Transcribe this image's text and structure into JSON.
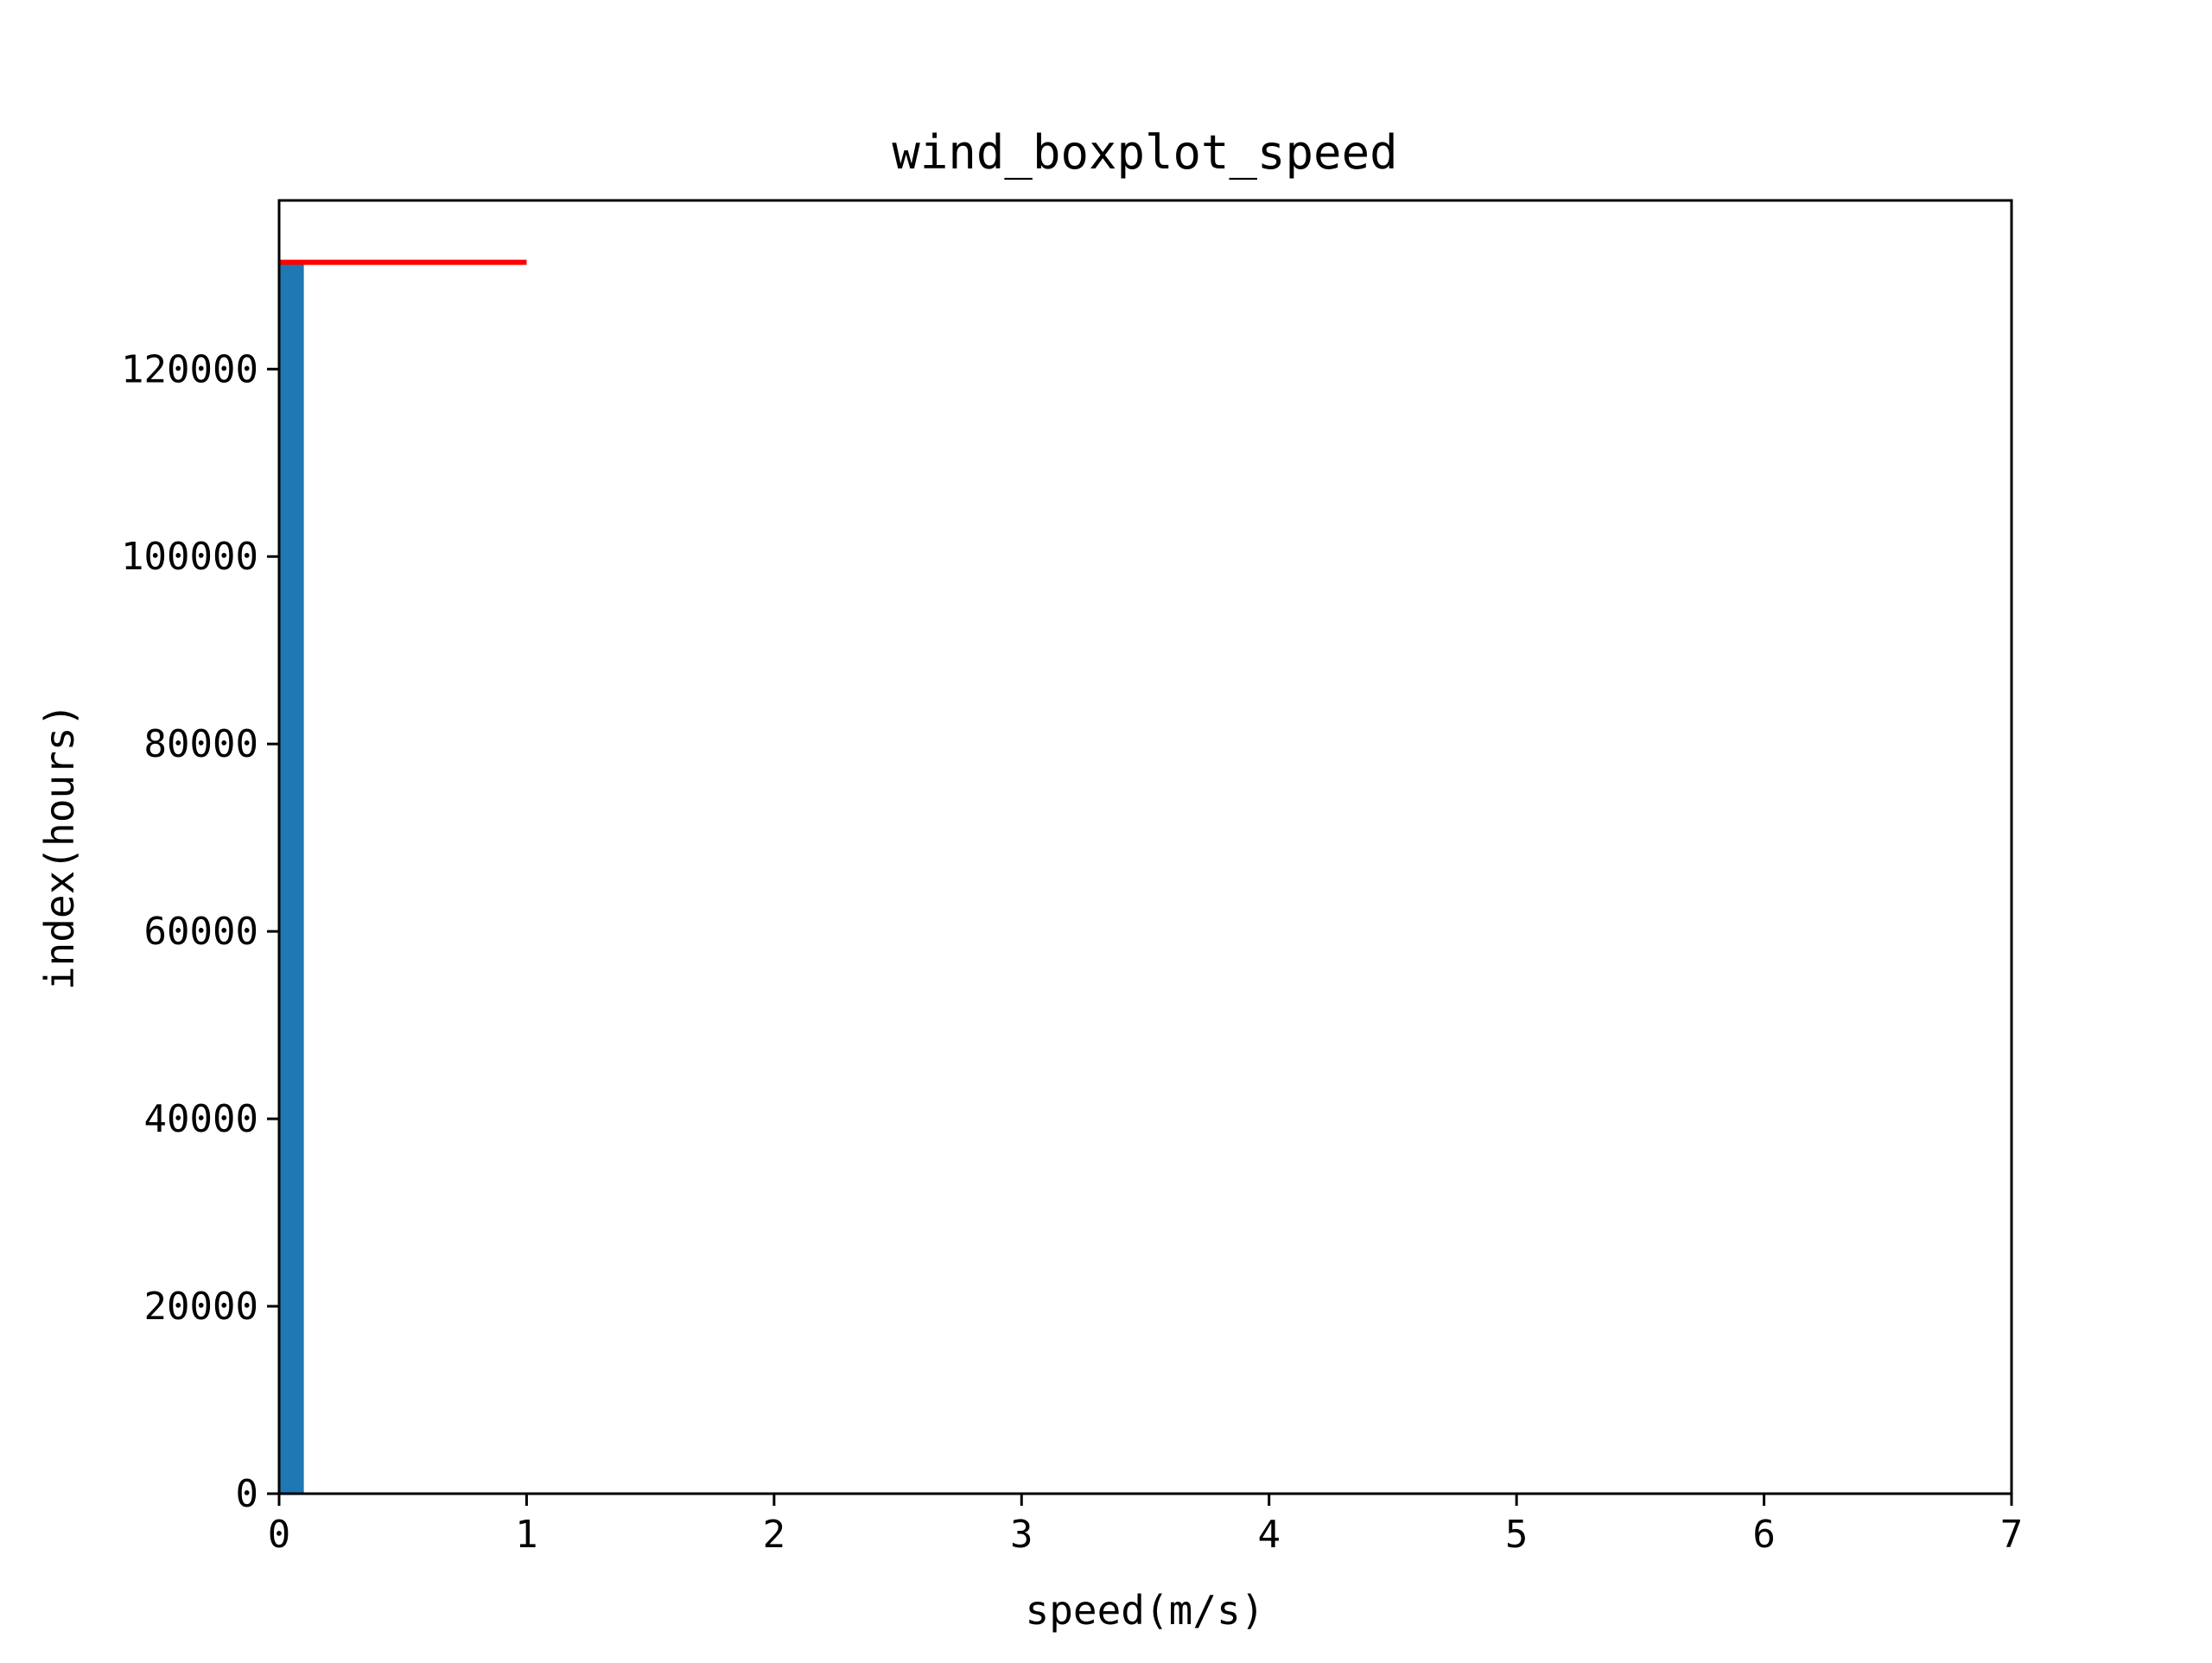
{
  "chart_data": {
    "type": "bar",
    "title": "wind_boxplot_speed",
    "xlabel": "speed(m/s)",
    "ylabel": "index(hours)",
    "xlim": [
      0,
      7
    ],
    "ylim": [
      0,
      138000
    ],
    "xticks": [
      0,
      1,
      2,
      3,
      4,
      5,
      6,
      7
    ],
    "yticks": [
      0,
      20000,
      40000,
      60000,
      80000,
      100000,
      120000
    ],
    "bars": [
      {
        "x0": 0.0,
        "x1": 0.1,
        "value": 131400,
        "color": "#1f77b4"
      }
    ],
    "reference_lines": [
      {
        "x0": 0.0,
        "x1": 1.0,
        "y": 131400,
        "color": "#ff0000"
      }
    ],
    "grid": false,
    "legend": "none"
  }
}
